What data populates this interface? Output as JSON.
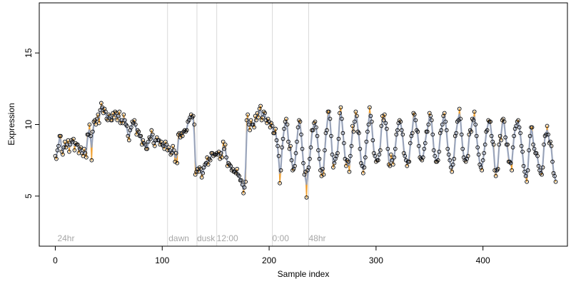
{
  "chart_data": {
    "type": "scatter",
    "xlabel": "Sample index",
    "ylabel": "Expression",
    "xlim": [
      -15,
      479
    ],
    "ylim": [
      1.5,
      18.5
    ],
    "x_ticks": [
      0,
      100,
      200,
      300,
      400
    ],
    "y_ticks": [
      5,
      10,
      15
    ],
    "grid": false,
    "legend": "none",
    "annotations": [
      {
        "x": 2,
        "label": "24hr"
      },
      {
        "x": 106,
        "label": "dawn"
      },
      {
        "x": 132.5,
        "label": "dusk"
      },
      {
        "x": 151,
        "label": "12:00"
      },
      {
        "x": 203,
        "label": "0:00"
      },
      {
        "x": 237,
        "label": "48hr"
      }
    ],
    "vertical_lines": [
      105,
      132.5,
      151,
      203,
      237
    ],
    "series": [
      {
        "values": [
          7.8,
          7.6,
          8.2,
          8.5,
          9.2,
          9.2,
          8.1,
          7.9,
          8.4,
          8.8,
          8.4,
          8.6,
          8.9,
          8.1,
          8.6,
          8.9,
          8.8,
          9.0,
          8.2,
          8.7,
          8.6,
          8.6,
          8.0,
          8.3,
          8.4,
          8.0,
          7.8,
          8.3,
          8.0,
          7.7,
          9.3,
          9.3,
          10.0,
          9.2,
          7.5,
          9.5,
          10.2,
          10.3,
          10.0,
          10.4,
          10.7,
          10.1,
          11.0,
          11.5,
          11.2,
          10.8,
          11.1,
          10.9,
          10.4,
          10.3,
          10.7,
          10.6,
          10.3,
          10.3,
          10.8,
          10.5,
          10.9,
          10.8,
          10.3,
          10.6,
          10.9,
          10.1,
          10.3,
          10.1,
          10.7,
          10.3,
          10.0,
          9.9,
          9.2,
          8.9,
          9.6,
          9.8,
          10.2,
          10.1,
          10.3,
          10.0,
          9.3,
          9.6,
          9.5,
          9.2,
          9.2,
          8.6,
          8.9,
          8.7,
          8.6,
          8.3,
          8.3,
          8.8,
          9.1,
          9.0,
          9.6,
          9.3,
          8.7,
          8.5,
          8.9,
          9.1,
          8.9,
          8.9,
          8.6,
          8.8,
          8.6,
          8.5,
          8.3,
          8.8,
          8.6,
          8.2,
          8.4,
          8.2,
          7.9,
          8.0,
          8.5,
          8.2,
          7.4,
          8.0,
          7.3,
          9.3,
          9.4,
          9.1,
          9.4,
          9.2,
          9.5,
          9.6,
          9.5,
          9.6,
          10.2,
          10.3,
          10.5,
          10.7,
          10.5,
          10.6,
          10.0,
          6.5,
          6.7,
          6.9,
          6.7,
          7.0,
          6.9,
          6.3,
          6.6,
          7.0,
          7.2,
          7.3,
          7.7,
          7.2,
          7.6,
          7.5,
          8.0,
          8.0,
          7.8,
          7.9,
          7.9,
          8.0,
          7.9,
          8.1,
          7.6,
          8.0,
          7.7,
          8.8,
          8.3,
          8.6,
          7.7,
          7.1,
          7.3,
          7.2,
          7.1,
          6.8,
          6.9,
          6.7,
          6.7,
          6.6,
          6.9,
          6.5,
          6.4,
          6.1,
          6.1,
          5.8,
          5.2,
          5.6,
          6.0,
          10.3,
          10.7,
          10.0,
          9.6,
          10.3,
          10.0,
          10.0,
          9.8,
          10.6,
          10.3,
          10.8,
          10.5,
          11.1,
          11.3,
          10.3,
          10.5,
          10.9,
          10.8,
          10.3,
          10.1,
          10.4,
          10.2,
          9.8,
          10.1,
          9.9,
          9.4,
          9.4,
          9.7,
          8.9,
          8.5,
          7.8,
          5.9,
          6.8,
          8.4,
          9.0,
          9.7,
          10.2,
          10.4,
          10.0,
          8.8,
          8.3,
          8.5,
          7.5,
          6.8,
          6.9,
          7.1,
          8.0,
          8.8,
          9.8,
          10.3,
          10.2,
          9.3,
          8.3,
          7.3,
          6.5,
          6.7,
          4.9,
          6.8,
          7.0,
          7.6,
          8.4,
          9.6,
          9.6,
          10.1,
          10.2,
          9.8,
          9.2,
          8.2,
          7.6,
          6.8,
          6.4,
          6.9,
          6.5,
          8.2,
          9.4,
          9.6,
          10.9,
          10.9,
          10.4,
          9.2,
          7.9,
          7.0,
          7.3,
          7.6,
          7.8,
          8.0,
          9.0,
          10.8,
          11.2,
          10.4,
          9.4,
          8.7,
          7.6,
          7.1,
          7.5,
          7.4,
          6.7,
          7.8,
          8.5,
          9.9,
          9.5,
          10.2,
          10.9,
          10.6,
          9.5,
          9.4,
          8.3,
          7.3,
          7.1,
          6.6,
          7.0,
          7.7,
          8.8,
          9.5,
          10.0,
          11.2,
          10.6,
          10.2,
          8.9,
          8.0,
          7.8,
          7.4,
          7.5,
          7.5,
          7.9,
          8.2,
          9.9,
          10.6,
          10.3,
          10.7,
          10.1,
          9.7,
          8.3,
          7.2,
          7.1,
          7.9,
          7.5,
          7.2,
          7.7,
          8.3,
          9.3,
          9.6,
          10.1,
          10.3,
          10.2,
          9.6,
          9.3,
          8.0,
          7.8,
          7.5,
          7.1,
          7.4,
          7.4,
          8.7,
          9.2,
          9.4,
          10.8,
          10.7,
          10.3,
          9.6,
          9.5,
          8.5,
          7.7,
          7.6,
          7.5,
          7.7,
          8.3,
          8.7,
          9.5,
          9.5,
          10.0,
          10.8,
          10.6,
          10.3,
          9.3,
          8.2,
          7.8,
          7.4,
          7.4,
          7.5,
          8.1,
          9.4,
          9.6,
          10.0,
          10.6,
          10.8,
          10.2,
          9.6,
          8.3,
          7.9,
          7.5,
          7.0,
          6.7,
          7.2,
          7.6,
          9.2,
          9.4,
          10.2,
          10.3,
          11.1,
          10.4,
          9.3,
          8.3,
          7.7,
          7.5,
          7.4,
          7.6,
          7.8,
          9.3,
          9.6,
          9.5,
          10.4,
          10.3,
          10.9,
          10.0,
          9.2,
          8.4,
          7.9,
          7.2,
          7.0,
          6.8,
          7.5,
          8.0,
          8.6,
          9.5,
          9.6,
          10.3,
          10.2,
          10.2,
          9.2,
          8.8,
          8.6,
          6.8,
          6.4,
          6.8,
          6.9,
          8.6,
          9.2,
          8.9,
          10.3,
          10.4,
          10.2,
          9.1,
          8.6,
          8.6,
          7.4,
          7.4,
          7.3,
          6.8,
          8.4,
          9.2,
          9.7,
          9.9,
          10.2,
          10.3,
          9.8,
          9.4,
          8.5,
          8.1,
          7.1,
          6.7,
          6.4,
          6.0,
          6.8,
          8.2,
          9.2,
          9.8,
          9.8,
          8.6,
          8.3,
          8.0,
          8.0,
          7.8,
          7.1,
          6.8,
          6.6,
          6.5,
          7.0,
          8.6,
          9.2,
          9.3,
          9.9,
          9.3,
          8.7,
          8.8,
          8.5,
          7.4,
          6.6,
          6.4,
          6.0
        ]
      }
    ]
  }
}
